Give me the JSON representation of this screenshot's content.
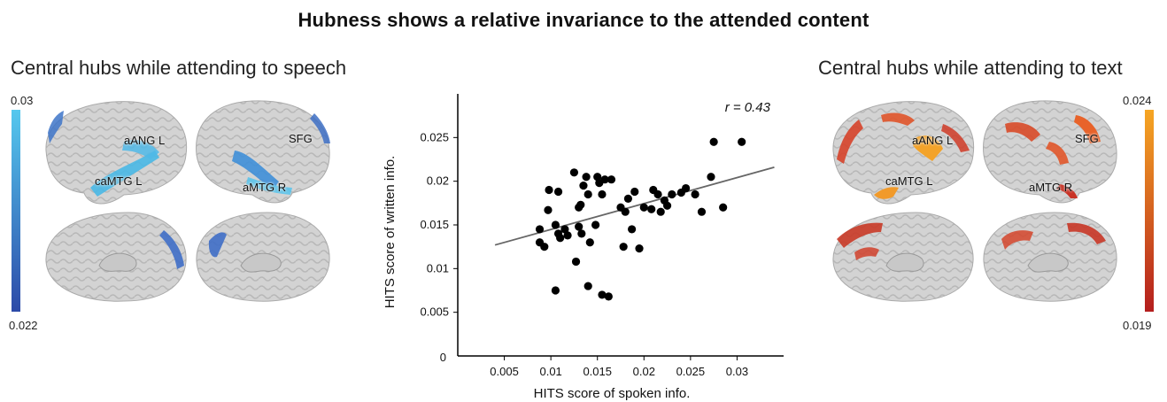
{
  "figure": {
    "title": "Hubness shows a relative invariance to the attended content"
  },
  "left_panel": {
    "title": "Central hubs while attending to speech",
    "colorbar": {
      "max_label": "0.03",
      "min_label": "0.022",
      "top_color": "#55c8ee",
      "bottom_color": "#2c4aa8"
    },
    "region_labels": [
      "aANG L",
      "caMTG L",
      "SFG",
      "aMTG R"
    ]
  },
  "right_panel": {
    "title": "Central hubs while attending to text",
    "colorbar": {
      "max_label": "0.024",
      "min_label": "0.019",
      "top_color": "#f6a623",
      "bottom_color": "#b41e1e"
    },
    "region_labels": [
      "aANG L",
      "caMTG L",
      "SFG",
      "aMTG R"
    ]
  },
  "chart_data": {
    "type": "scatter",
    "xlabel": "HITS score of spoken info.",
    "ylabel": "HITS score of written info.",
    "annotation": "r = 0.43",
    "xlim": [
      0,
      0.035
    ],
    "ylim": [
      0,
      0.03
    ],
    "x_ticks": [
      "0.005",
      "0.01",
      "0.015",
      "0.02",
      "0.025",
      "0.03"
    ],
    "x_tick_values": [
      0.005,
      0.01,
      0.015,
      0.02,
      0.025,
      0.03
    ],
    "y_ticks": [
      "0.005",
      "0.01",
      "0.015",
      "0.02",
      "0.025"
    ],
    "y_tick_values": [
      0.005,
      0.01,
      0.015,
      0.02,
      0.025
    ],
    "origin_label": "0",
    "fit_line": {
      "x": [
        0.004,
        0.034
      ],
      "y": [
        0.0127,
        0.0216
      ]
    },
    "points": [
      [
        0.0088,
        0.0145
      ],
      [
        0.0088,
        0.013
      ],
      [
        0.0093,
        0.0125
      ],
      [
        0.0097,
        0.0167
      ],
      [
        0.0098,
        0.019
      ],
      [
        0.0105,
        0.0075
      ],
      [
        0.0105,
        0.015
      ],
      [
        0.0108,
        0.0188
      ],
      [
        0.0108,
        0.014
      ],
      [
        0.011,
        0.0135
      ],
      [
        0.0115,
        0.0145
      ],
      [
        0.0118,
        0.0138
      ],
      [
        0.0125,
        0.021
      ],
      [
        0.0127,
        0.0108
      ],
      [
        0.013,
        0.017
      ],
      [
        0.013,
        0.0148
      ],
      [
        0.0132,
        0.0173
      ],
      [
        0.0133,
        0.014
      ],
      [
        0.0135,
        0.0195
      ],
      [
        0.0138,
        0.0205
      ],
      [
        0.014,
        0.008
      ],
      [
        0.014,
        0.0185
      ],
      [
        0.0142,
        0.013
      ],
      [
        0.0148,
        0.015
      ],
      [
        0.015,
        0.0205
      ],
      [
        0.0152,
        0.0198
      ],
      [
        0.0155,
        0.007
      ],
      [
        0.0155,
        0.0185
      ],
      [
        0.0158,
        0.0202
      ],
      [
        0.0162,
        0.0068
      ],
      [
        0.0165,
        0.0202
      ],
      [
        0.0175,
        0.017
      ],
      [
        0.0178,
        0.0125
      ],
      [
        0.018,
        0.0165
      ],
      [
        0.0183,
        0.018
      ],
      [
        0.0187,
        0.0145
      ],
      [
        0.019,
        0.0188
      ],
      [
        0.0195,
        0.0123
      ],
      [
        0.02,
        0.017
      ],
      [
        0.0208,
        0.0168
      ],
      [
        0.021,
        0.019
      ],
      [
        0.0215,
        0.0185
      ],
      [
        0.0218,
        0.0165
      ],
      [
        0.0222,
        0.0178
      ],
      [
        0.0225,
        0.0172
      ],
      [
        0.023,
        0.0185
      ],
      [
        0.024,
        0.0187
      ],
      [
        0.0245,
        0.0192
      ],
      [
        0.0255,
        0.0185
      ],
      [
        0.0262,
        0.0165
      ],
      [
        0.0272,
        0.0205
      ],
      [
        0.0275,
        0.0245
      ],
      [
        0.0285,
        0.017
      ],
      [
        0.0305,
        0.0245
      ]
    ]
  }
}
